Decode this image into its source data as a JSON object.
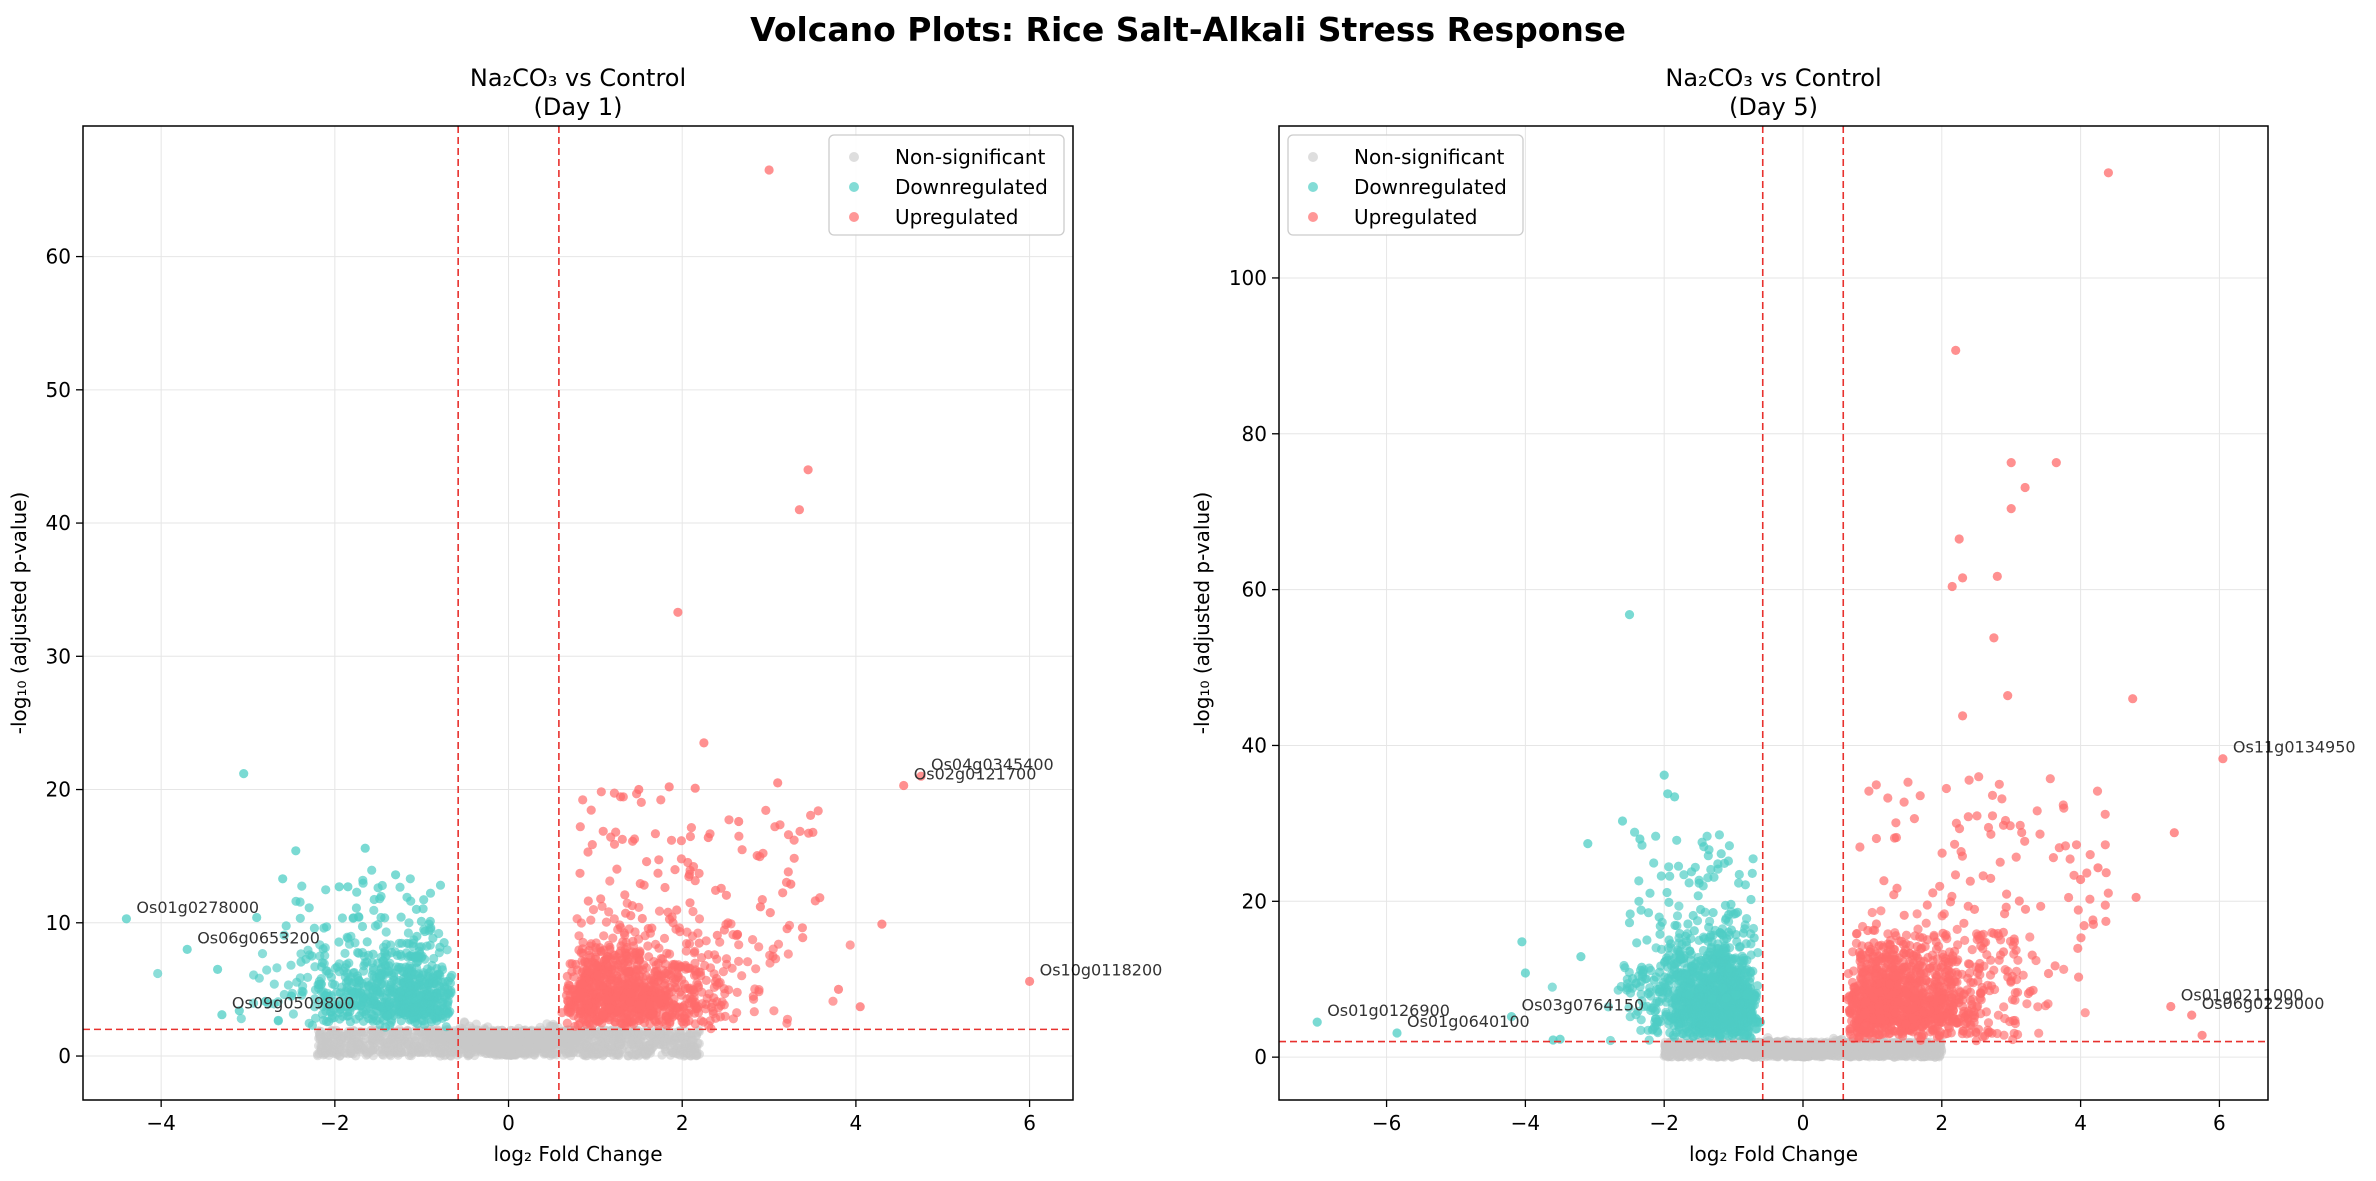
{
  "figure": {
    "title": "Volcano Plots: Rice Salt-Alkali Stress Response"
  },
  "chart_data": [
    {
      "type": "scatter",
      "title_line1": "Na₂CO₃ vs Control",
      "title_line2": "(Day 1)",
      "xlabel": "log₂ Fold Change",
      "ylabel": "-log₁₀ (adjusted p-value)",
      "xlim": [
        -4.9,
        6.5
      ],
      "ylim": [
        -3.3,
        69.8
      ],
      "xticks": [
        -4,
        -2,
        0,
        2,
        4,
        6
      ],
      "yticks": [
        0,
        10,
        20,
        30,
        40,
        50,
        60
      ],
      "grid": true,
      "legend": "top-right",
      "thresholds": {
        "fc_low": -0.58,
        "fc_high": 0.58,
        "p": 2.0
      },
      "series": [
        {
          "name": "Non-significant",
          "color": "#c8c8c8"
        },
        {
          "name": "Downregulated",
          "color": "#4ecdc4"
        },
        {
          "name": "Upregulated",
          "color": "#ff6b6b"
        }
      ],
      "outliers": {
        "down": [
          [
            -4.4,
            10.3
          ],
          [
            -3.7,
            8.0
          ],
          [
            -3.05,
            21.2
          ],
          [
            -3.35,
            6.5
          ],
          [
            -2.9,
            10.4
          ],
          [
            -2.6,
            13.3
          ],
          [
            -2.45,
            15.4
          ],
          [
            -1.65,
            15.6
          ],
          [
            -1.85,
            12.7
          ],
          [
            -1.95,
            12.7
          ],
          [
            -1.3,
            13.6
          ],
          [
            -2.8,
            4.1
          ],
          [
            -2.5,
            4.5
          ],
          [
            -3.1,
            3.4
          ],
          [
            -3.3,
            3.1
          ]
        ],
        "up": [
          [
            3.0,
            66.5
          ],
          [
            3.45,
            44.0
          ],
          [
            3.35,
            41.0
          ],
          [
            1.95,
            33.3
          ],
          [
            2.25,
            23.5
          ],
          [
            3.1,
            20.5
          ],
          [
            4.55,
            20.3
          ],
          [
            4.75,
            21.0
          ],
          [
            1.5,
            20.0
          ],
          [
            1.85,
            20.2
          ],
          [
            2.15,
            20.1
          ],
          [
            4.3,
            9.9
          ],
          [
            6.0,
            5.6
          ],
          [
            3.8,
            5.0
          ],
          [
            4.05,
            3.7
          ],
          [
            2.65,
            17.6
          ],
          [
            2.3,
            16.4
          ],
          [
            3.25,
            12.9
          ],
          [
            2.9,
            11.2
          ]
        ]
      },
      "annotations": [
        {
          "text": "Os04g0345400",
          "x": 4.75,
          "y": 21.0
        },
        {
          "text": "Os02g0121700",
          "x": 4.55,
          "y": 20.3
        },
        {
          "text": "Os01g0278000",
          "x": -4.4,
          "y": 10.3
        },
        {
          "text": "Os06g0653200",
          "x": -3.7,
          "y": 8.0
        },
        {
          "text": "Os09g0509800",
          "x": -3.3,
          "y": 3.1
        },
        {
          "text": "Os10g0118200",
          "x": 6.0,
          "y": 5.6
        }
      ]
    },
    {
      "type": "scatter",
      "title_line1": "Na₂CO₃ vs Control",
      "title_line2": "(Day 5)",
      "xlabel": "log₂ Fold Change",
      "ylabel": "-log₁₀ (adjusted p-value)",
      "xlim": [
        -7.55,
        6.7
      ],
      "ylim": [
        -5.5,
        119.5
      ],
      "xticks": [
        -6,
        -4,
        -2,
        0,
        2,
        4,
        6
      ],
      "yticks": [
        0,
        20,
        40,
        60,
        80,
        100
      ],
      "grid": true,
      "legend": "top-left",
      "thresholds": {
        "fc_low": -0.58,
        "fc_high": 0.58,
        "p": 2.0
      },
      "series": [
        {
          "name": "Non-significant",
          "color": "#c8c8c8"
        },
        {
          "name": "Downregulated",
          "color": "#4ecdc4"
        },
        {
          "name": "Upregulated",
          "color": "#ff6b6b"
        }
      ],
      "outliers": {
        "down": [
          [
            -7.0,
            4.5
          ],
          [
            -5.85,
            3.1
          ],
          [
            -4.2,
            5.2
          ],
          [
            -4.05,
            14.8
          ],
          [
            -4.0,
            10.8
          ],
          [
            -2.5,
            56.8
          ],
          [
            -2.0,
            36.2
          ],
          [
            -1.95,
            33.8
          ],
          [
            -1.85,
            33.4
          ],
          [
            -2.35,
            28.0
          ],
          [
            -3.1,
            27.4
          ],
          [
            -2.6,
            30.3
          ],
          [
            -3.2,
            12.9
          ],
          [
            -3.6,
            2.2
          ],
          [
            -3.5,
            2.3
          ]
        ],
        "up": [
          [
            4.4,
            113.5
          ],
          [
            2.2,
            90.7
          ],
          [
            3.0,
            76.3
          ],
          [
            3.65,
            76.3
          ],
          [
            3.2,
            73.1
          ],
          [
            3.0,
            70.4
          ],
          [
            2.25,
            66.5
          ],
          [
            2.8,
            61.7
          ],
          [
            2.3,
            61.5
          ],
          [
            2.15,
            60.4
          ],
          [
            2.75,
            53.8
          ],
          [
            2.95,
            46.4
          ],
          [
            4.75,
            46.0
          ],
          [
            6.05,
            38.3
          ],
          [
            5.35,
            28.8
          ],
          [
            4.8,
            20.5
          ],
          [
            5.3,
            6.5
          ],
          [
            5.6,
            5.4
          ],
          [
            5.75,
            2.8
          ],
          [
            2.3,
            43.8
          ],
          [
            4.0,
            22.8
          ],
          [
            4.25,
            24.3
          ]
        ]
      },
      "annotations": [
        {
          "text": "Os11g0134950",
          "x": 6.05,
          "y": 38.3
        },
        {
          "text": "Os01g0126900",
          "x": -7.0,
          "y": 4.5
        },
        {
          "text": "Os01g0640100",
          "x": -5.85,
          "y": 3.1
        },
        {
          "text": "Os03g0764150",
          "x": -4.2,
          "y": 5.2
        },
        {
          "text": "Os01g0211000",
          "x": 5.3,
          "y": 6.5
        },
        {
          "text": "Os06g0229000",
          "x": 5.6,
          "y": 5.4
        }
      ]
    }
  ]
}
